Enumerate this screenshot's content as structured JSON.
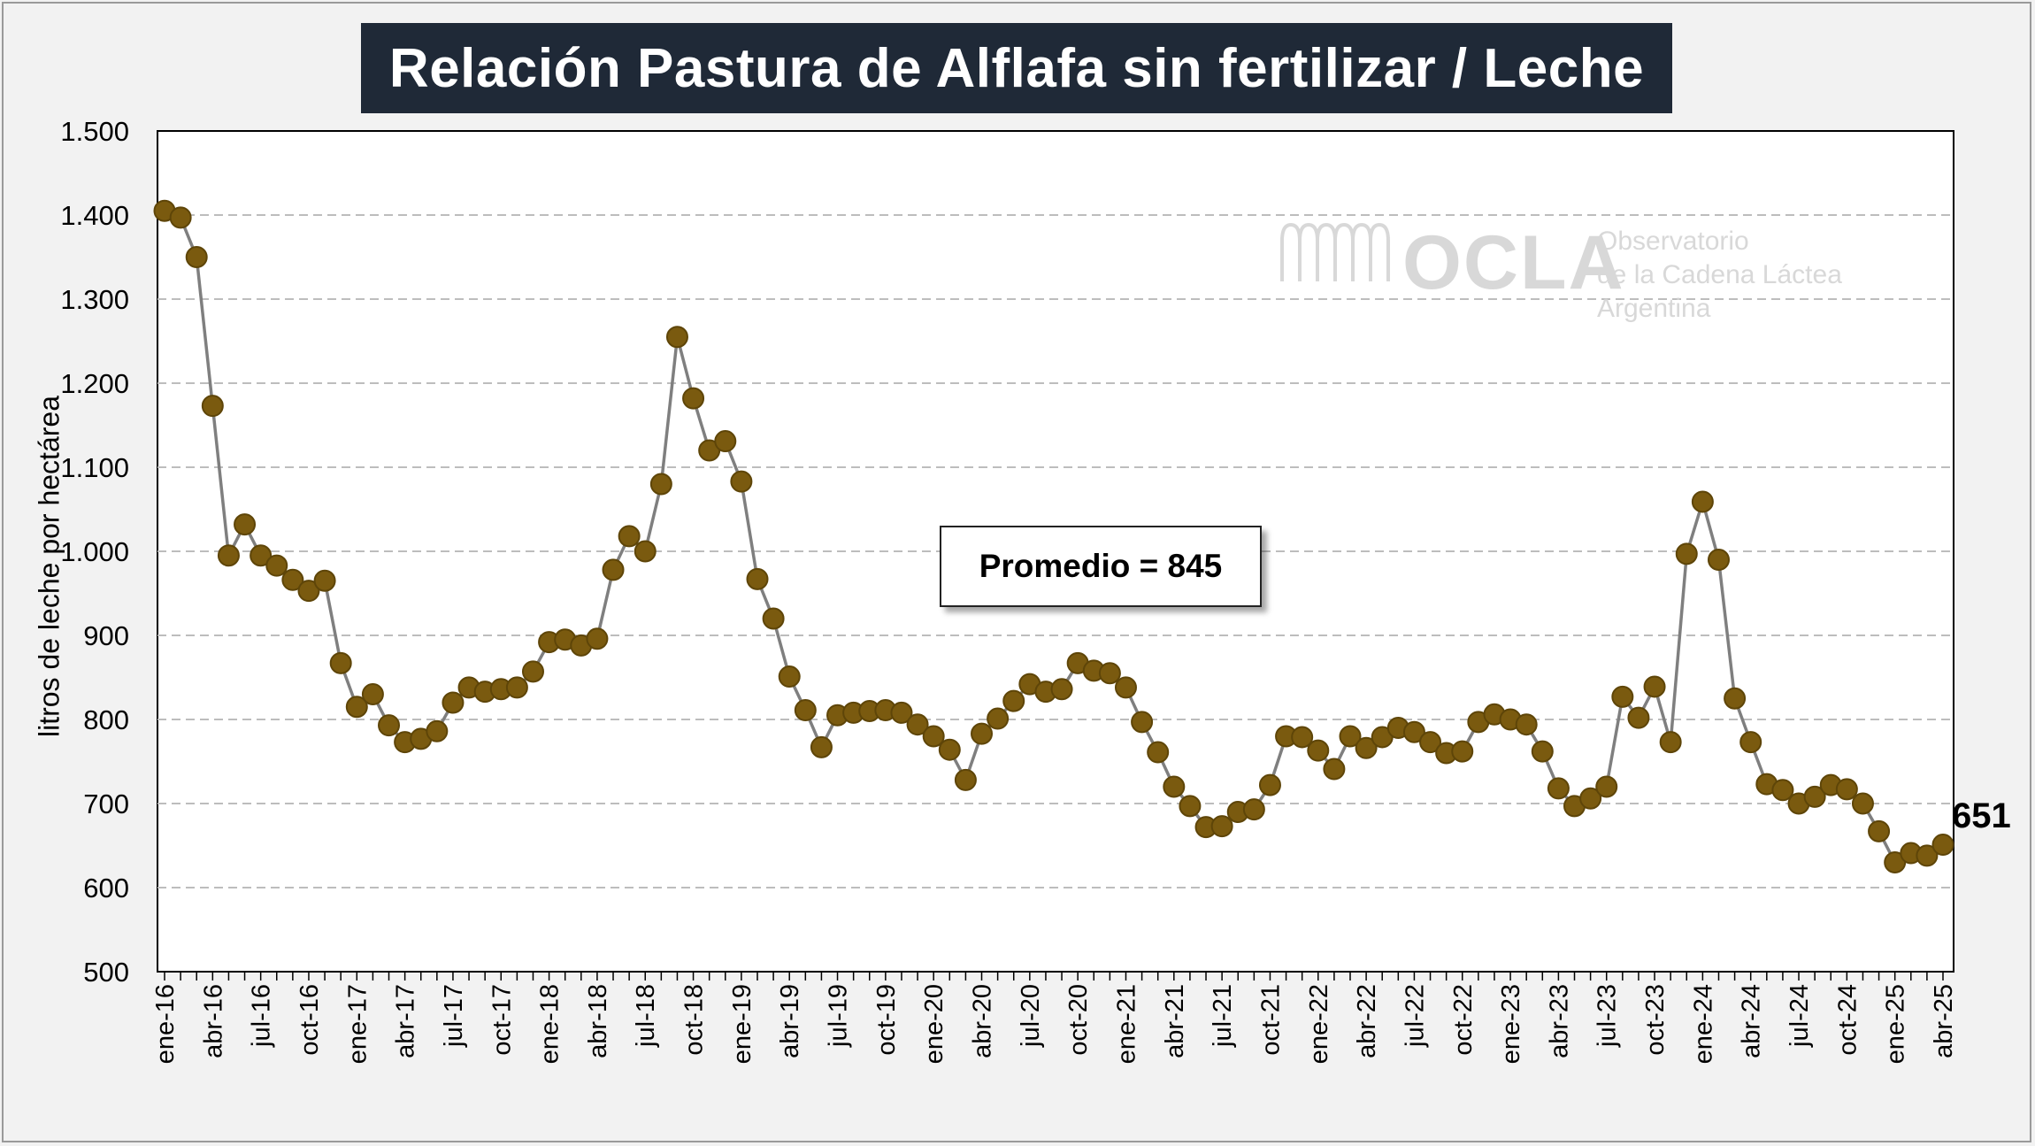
{
  "chart_data": {
    "type": "line",
    "title": "Relación Pastura de Alflafa sin fertilizar / Leche",
    "ylabel": "litros de leche por hectárea",
    "ylim": [
      500,
      1500
    ],
    "ytick_labels": [
      "500",
      "600",
      "700",
      "800",
      "900",
      "1.000",
      "1.100",
      "1.200",
      "1.300",
      "1.400",
      "1.500"
    ],
    "x_tick_labels": [
      "ene-16",
      "abr-16",
      "jul-16",
      "oct-16",
      "ene-17",
      "abr-17",
      "jul-17",
      "oct-17",
      "ene-18",
      "abr-18",
      "jul-18",
      "oct-18",
      "ene-19",
      "abr-19",
      "jul-19",
      "oct-19",
      "ene-20",
      "abr-20",
      "jul-20",
      "oct-20",
      "ene-21",
      "abr-21",
      "jul-21",
      "oct-21",
      "ene-22",
      "abr-22",
      "jul-22",
      "oct-22",
      "ene-23",
      "abr-23",
      "jul-23",
      "oct-23",
      "ene-24",
      "abr-24",
      "jul-24",
      "oct-24",
      "ene-25",
      "abr-25"
    ],
    "grid": "horizontal dashed",
    "annotation": "Promedio = 845",
    "last_value_label": "651",
    "series": [
      {
        "values": [
          1405,
          1397,
          1350,
          1173,
          995,
          1032,
          995,
          983,
          966,
          953,
          965,
          867,
          815,
          830,
          793,
          773,
          777,
          786,
          820,
          838,
          833,
          836,
          838,
          857,
          892,
          895,
          888,
          896,
          978,
          1018,
          1000,
          1080,
          1255,
          1182,
          1120,
          1131,
          1083,
          967,
          920,
          851,
          811,
          767,
          805,
          808,
          810,
          811,
          808,
          794,
          780,
          764,
          728,
          783,
          801,
          822,
          842,
          833,
          836,
          867,
          858,
          855,
          838,
          797,
          761,
          720,
          697,
          672,
          673,
          690,
          693,
          722,
          780,
          779,
          763,
          741,
          780,
          766,
          779,
          790,
          785,
          773,
          760,
          762,
          797,
          806,
          800,
          794,
          762,
          718,
          697,
          706,
          720,
          827,
          802,
          839,
          773,
          997,
          1059,
          990,
          825,
          773,
          723,
          716,
          700,
          708,
          722,
          717,
          700,
          667,
          630,
          641,
          638,
          651
        ]
      }
    ],
    "colors": {
      "line": "#7f7f7f",
      "marker_fill": "#7a5a0f",
      "marker_stroke": "#5e4508",
      "title_bg": "#1f2937"
    }
  },
  "watermark": {
    "brand": "OCLA",
    "line1": "Observatorio",
    "line2": "de la Cadena Láctea",
    "line3": "Argentina"
  }
}
